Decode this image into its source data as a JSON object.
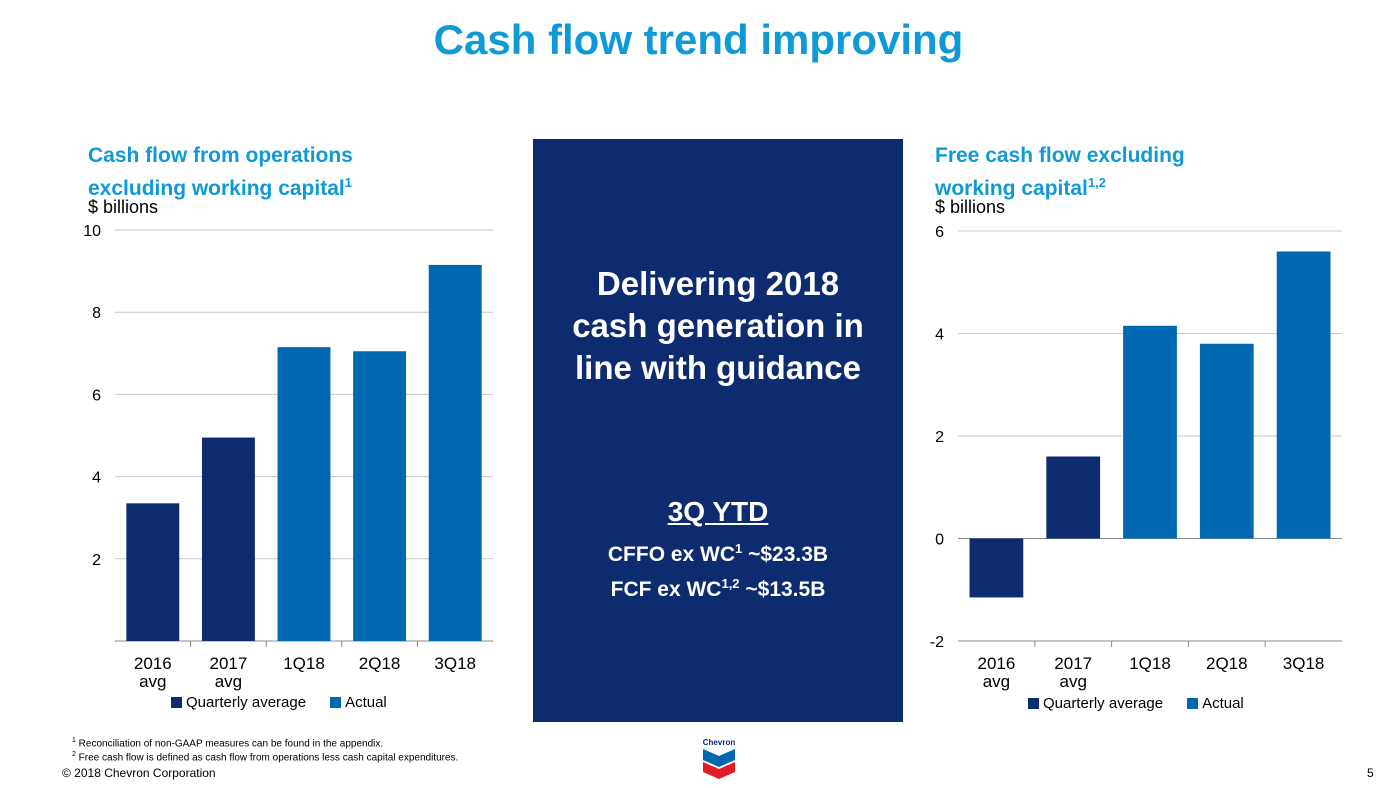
{
  "page": {
    "title": "Cash flow trend improving",
    "page_number": "5",
    "copyright": "© 2018 Chevron Corporation",
    "logo_text": "Chevron"
  },
  "left_panel": {
    "title_line1": "Cash flow from operations",
    "title_line2": "excluding working capital",
    "title_sup": "1",
    "unit": "$ billions"
  },
  "right_panel": {
    "title_line1": "Free cash flow excluding",
    "title_line2": "working capital",
    "title_sup": "1,2",
    "unit": "$ billions"
  },
  "legend": {
    "quarterly_average": "Quarterly average",
    "actual": "Actual"
  },
  "center": {
    "headline_line1": "Delivering 2018",
    "headline_line2": "cash generation in",
    "headline_line3": "line with guidance",
    "subhead": "3Q YTD",
    "cffo_prefix": "CFFO ex WC",
    "cffo_sup": "1",
    "cffo_value": " ~$23.3B",
    "fcf_prefix": "FCF ex WC",
    "fcf_sup": "1,2",
    "fcf_value": " ~$13.5B"
  },
  "footnotes": {
    "note1_sup": "1",
    "note1": " Reconciliation of non-GAAP measures can be found in the appendix.",
    "note2_sup": "2",
    "note2": " Free cash flow is defined as cash flow from operations less cash capital expenditures."
  },
  "colors": {
    "title": "#0f9ad7",
    "quarterly_average": "#0d2b6f",
    "actual": "#0067b1",
    "center_box": "#0d2b6f"
  },
  "chart_data": [
    {
      "type": "bar",
      "title": "Cash flow from operations excluding working capital",
      "ylabel": "$ billions",
      "categories": [
        [
          "2016",
          "avg"
        ],
        [
          "2017",
          "avg"
        ],
        [
          "1Q18"
        ],
        [
          "2Q18"
        ],
        [
          "3Q18"
        ]
      ],
      "values": [
        3.35,
        4.95,
        7.15,
        7.05,
        9.15
      ],
      "series_type": [
        "Quarterly average",
        "Quarterly average",
        "Actual",
        "Actual",
        "Actual"
      ],
      "ylim": [
        0,
        10
      ],
      "yticks": [
        2,
        4,
        6,
        8,
        10
      ],
      "grid": true,
      "legend": "bottom"
    },
    {
      "type": "bar",
      "title": "Free cash flow excluding working capital",
      "ylabel": "$ billions",
      "categories": [
        [
          "2016",
          "avg"
        ],
        [
          "2017",
          "avg"
        ],
        [
          "1Q18"
        ],
        [
          "2Q18"
        ],
        [
          "3Q18"
        ]
      ],
      "values": [
        -1.15,
        1.6,
        4.15,
        3.8,
        5.6
      ],
      "series_type": [
        "Quarterly average",
        "Quarterly average",
        "Actual",
        "Actual",
        "Actual"
      ],
      "ylim": [
        -2,
        6
      ],
      "yticks": [
        -2,
        0,
        2,
        4,
        6
      ],
      "grid": true,
      "legend": "bottom"
    }
  ]
}
